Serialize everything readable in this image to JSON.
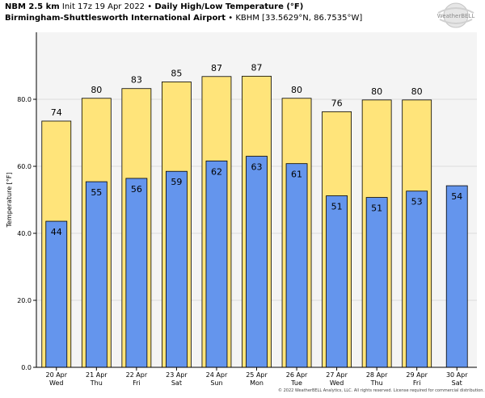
{
  "header": {
    "line1_model": "NBM 2.5 km",
    "line1_init": "Init 17z 19 Apr 2022",
    "line1_bullet": "•",
    "line1_title": "Daily High/Low Temperature (°F)",
    "line2_station": "Birmingham-Shuttlesworth International Airport",
    "line2_bullet": "•",
    "line2_info": "KBHM [33.5629°N, 86.7535°W]"
  },
  "logo": {
    "text": "WeatherBELL"
  },
  "footer": "© 2022 WeatherBELL Analytics, LLC. All rights reserved. License required for commercial distribution.",
  "colors": {
    "high": "#ffe47a",
    "low": "#6495ed",
    "plot_bg": "#f4f4f4",
    "grid": "#dcdcdc"
  },
  "chart_data": {
    "type": "bar",
    "title": "Daily High/Low Temperature (°F)",
    "ylabel": "Temperature [°F]",
    "ylim": [
      0,
      100
    ],
    "yticks": [
      "0.0",
      "20.0",
      "40.0",
      "60.0",
      "80.0"
    ],
    "categories": [
      [
        "20 Apr",
        "Wed"
      ],
      [
        "21 Apr",
        "Thu"
      ],
      [
        "22 Apr",
        "Fri"
      ],
      [
        "23 Apr",
        "Sat"
      ],
      [
        "24 Apr",
        "Sun"
      ],
      [
        "25 Apr",
        "Mon"
      ],
      [
        "26 Apr",
        "Tue"
      ],
      [
        "27 Apr",
        "Wed"
      ],
      [
        "28 Apr",
        "Thu"
      ],
      [
        "29 Apr",
        "Fri"
      ],
      [
        "30 Apr",
        "Sat"
      ]
    ],
    "series": [
      {
        "name": "High",
        "values": [
          73.5,
          80.3,
          83.2,
          85.2,
          86.8,
          86.9,
          80.3,
          76.3,
          79.8,
          79.8,
          null
        ],
        "labels": [
          "74",
          "80",
          "83",
          "85",
          "87",
          "87",
          "80",
          "76",
          "80",
          "80",
          null
        ]
      },
      {
        "name": "Low",
        "values": [
          43.6,
          55.4,
          56.4,
          58.5,
          61.6,
          63.0,
          60.8,
          51.2,
          50.7,
          52.6,
          54.2
        ],
        "labels": [
          "44",
          "55",
          "56",
          "59",
          "62",
          "63",
          "61",
          "51",
          "51",
          "53",
          "54"
        ]
      }
    ],
    "grid": true
  }
}
